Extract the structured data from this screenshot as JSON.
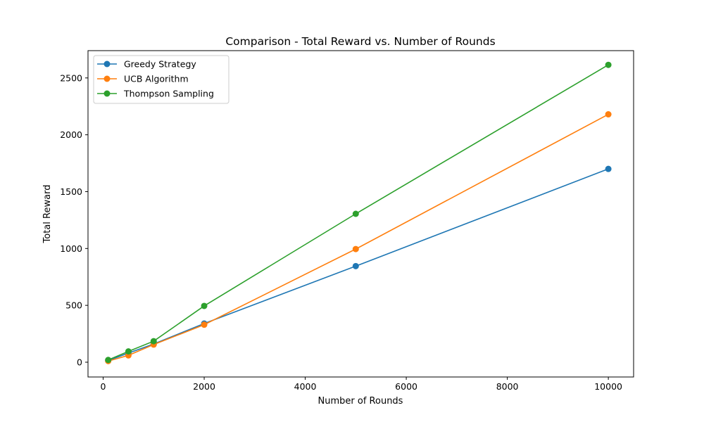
{
  "chart_data": {
    "type": "line",
    "title": "Comparison - Total Reward vs. Number of Rounds",
    "xlabel": "Number of Rounds",
    "ylabel": "Total Reward",
    "x": [
      100,
      500,
      1000,
      2000,
      5000,
      10000
    ],
    "xlim": [
      -300,
      10500
    ],
    "ylim": [
      -130,
      2740
    ],
    "xticks": [
      0,
      2000,
      4000,
      6000,
      8000,
      10000
    ],
    "yticks": [
      0,
      500,
      1000,
      1500,
      2000,
      2500
    ],
    "grid": false,
    "legend": "top-left",
    "series": [
      {
        "name": "Greedy Strategy",
        "color": "#1f77b4",
        "values": [
          15,
          80,
          160,
          340,
          845,
          1700
        ]
      },
      {
        "name": "UCB Algorithm",
        "color": "#ff7f0e",
        "values": [
          10,
          60,
          155,
          330,
          995,
          2180
        ]
      },
      {
        "name": "Thompson Sampling",
        "color": "#2ca02c",
        "values": [
          20,
          95,
          185,
          495,
          1305,
          2615
        ]
      }
    ]
  }
}
